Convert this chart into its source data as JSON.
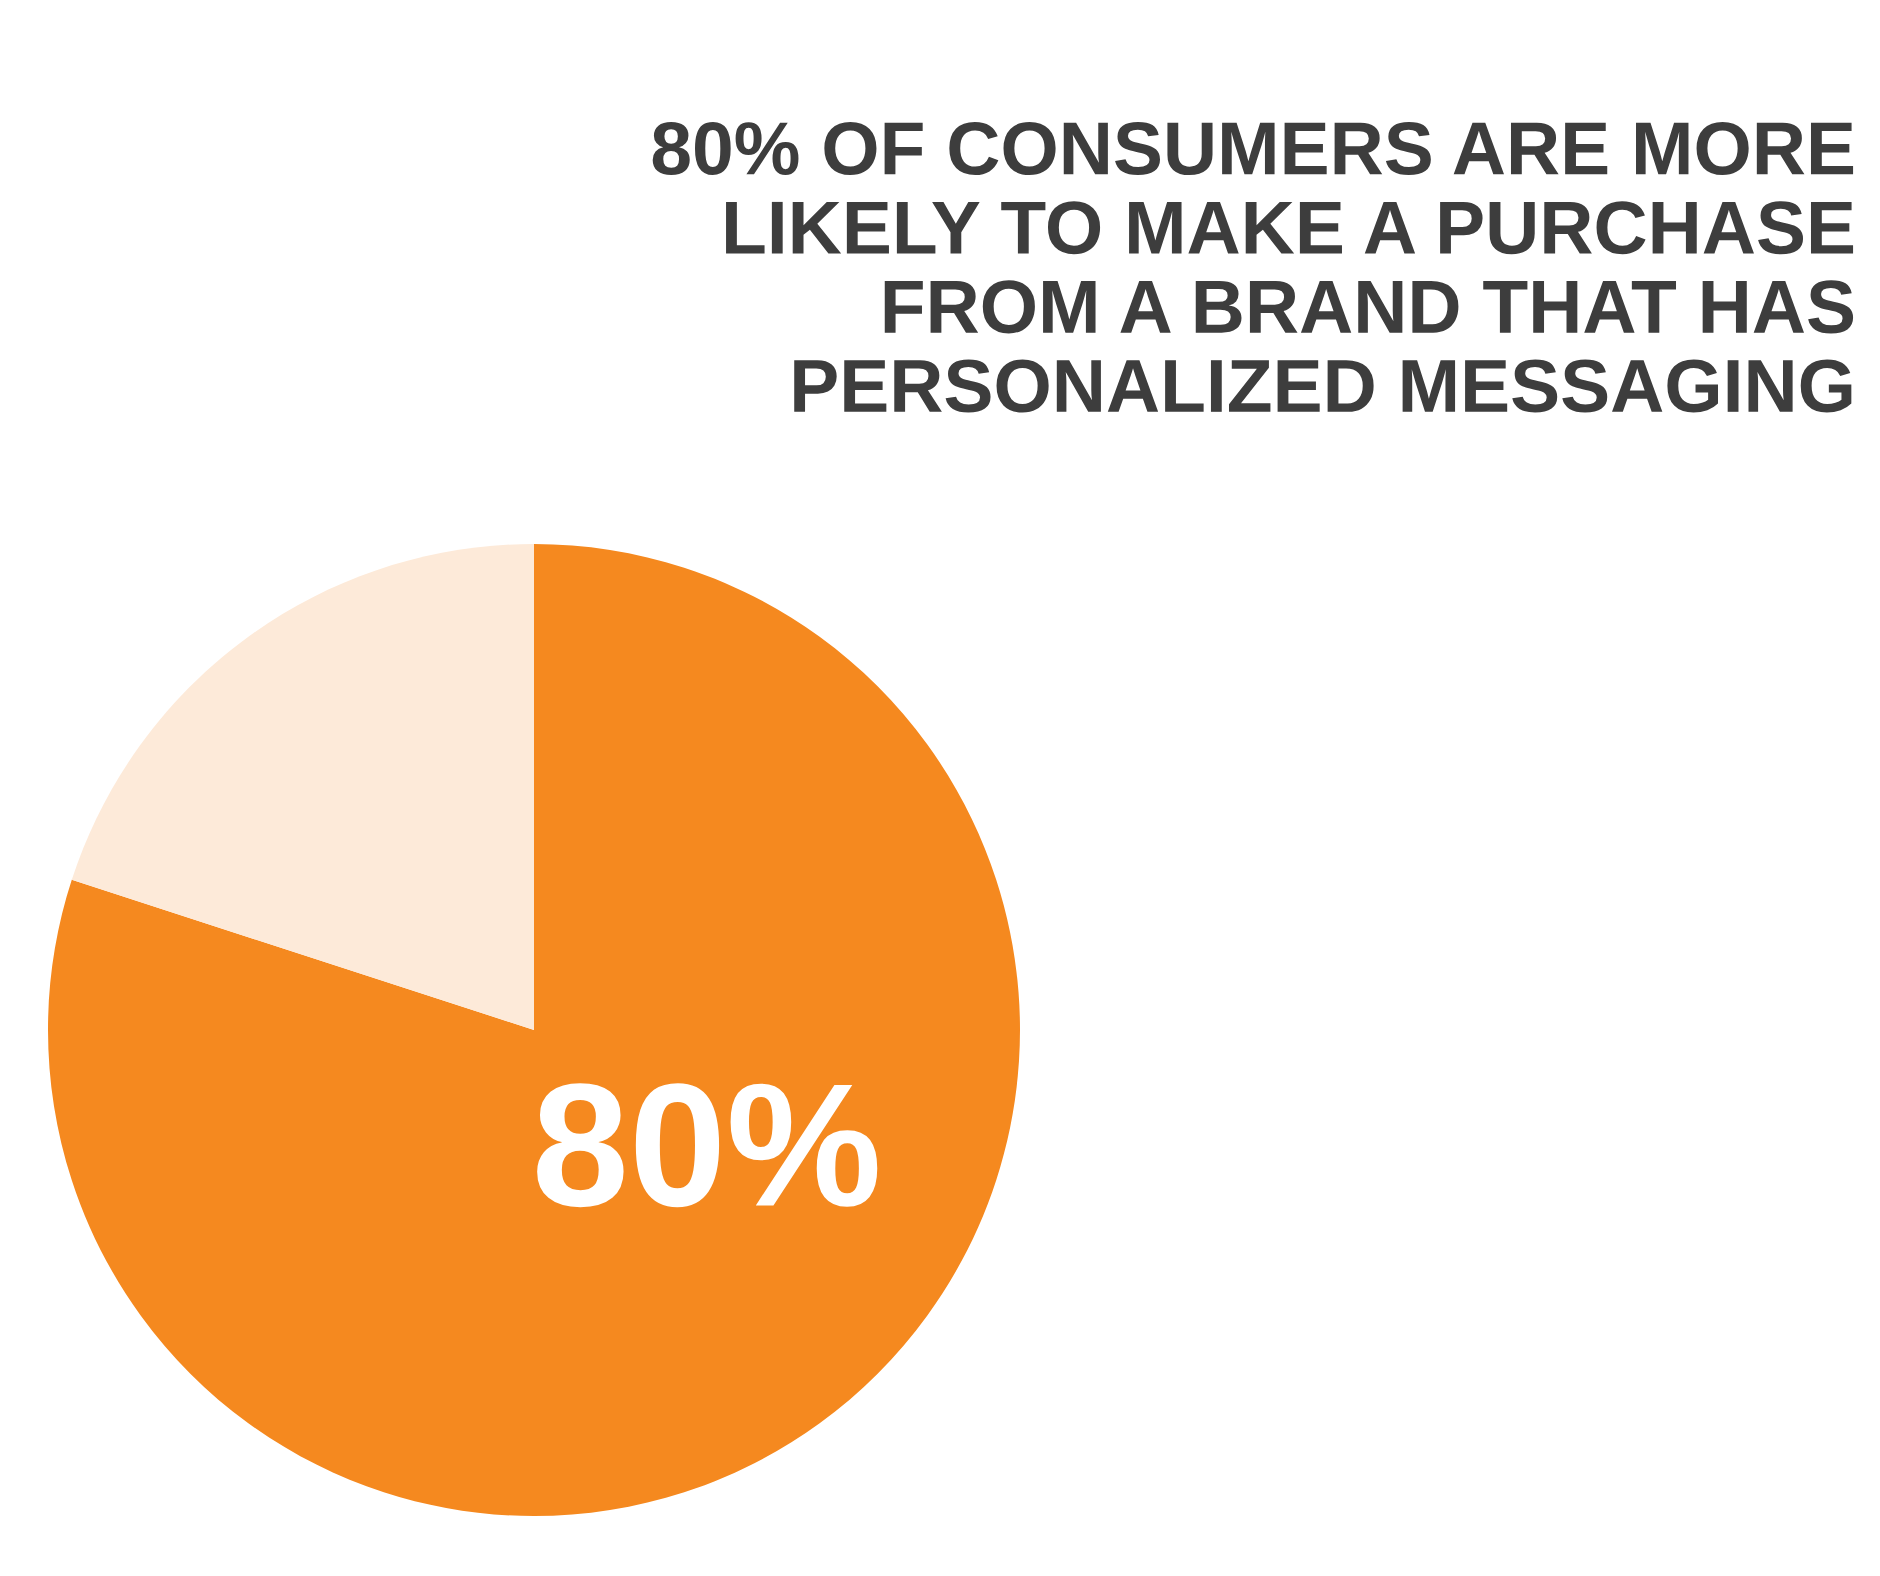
{
  "chart_data": {
    "type": "pie",
    "title": "80% OF CONSUMERS ARE MORE\nLIKELY TO MAKE A PURCHASE\nFROM A BRAND THAT HAS\nPERSONALIZED MESSAGING",
    "categories": [
      null,
      null
    ],
    "values": [
      80,
      20
    ],
    "colors": [
      "#f5891f",
      "#fdead9"
    ],
    "value_labels": [
      "80%",
      null
    ]
  }
}
